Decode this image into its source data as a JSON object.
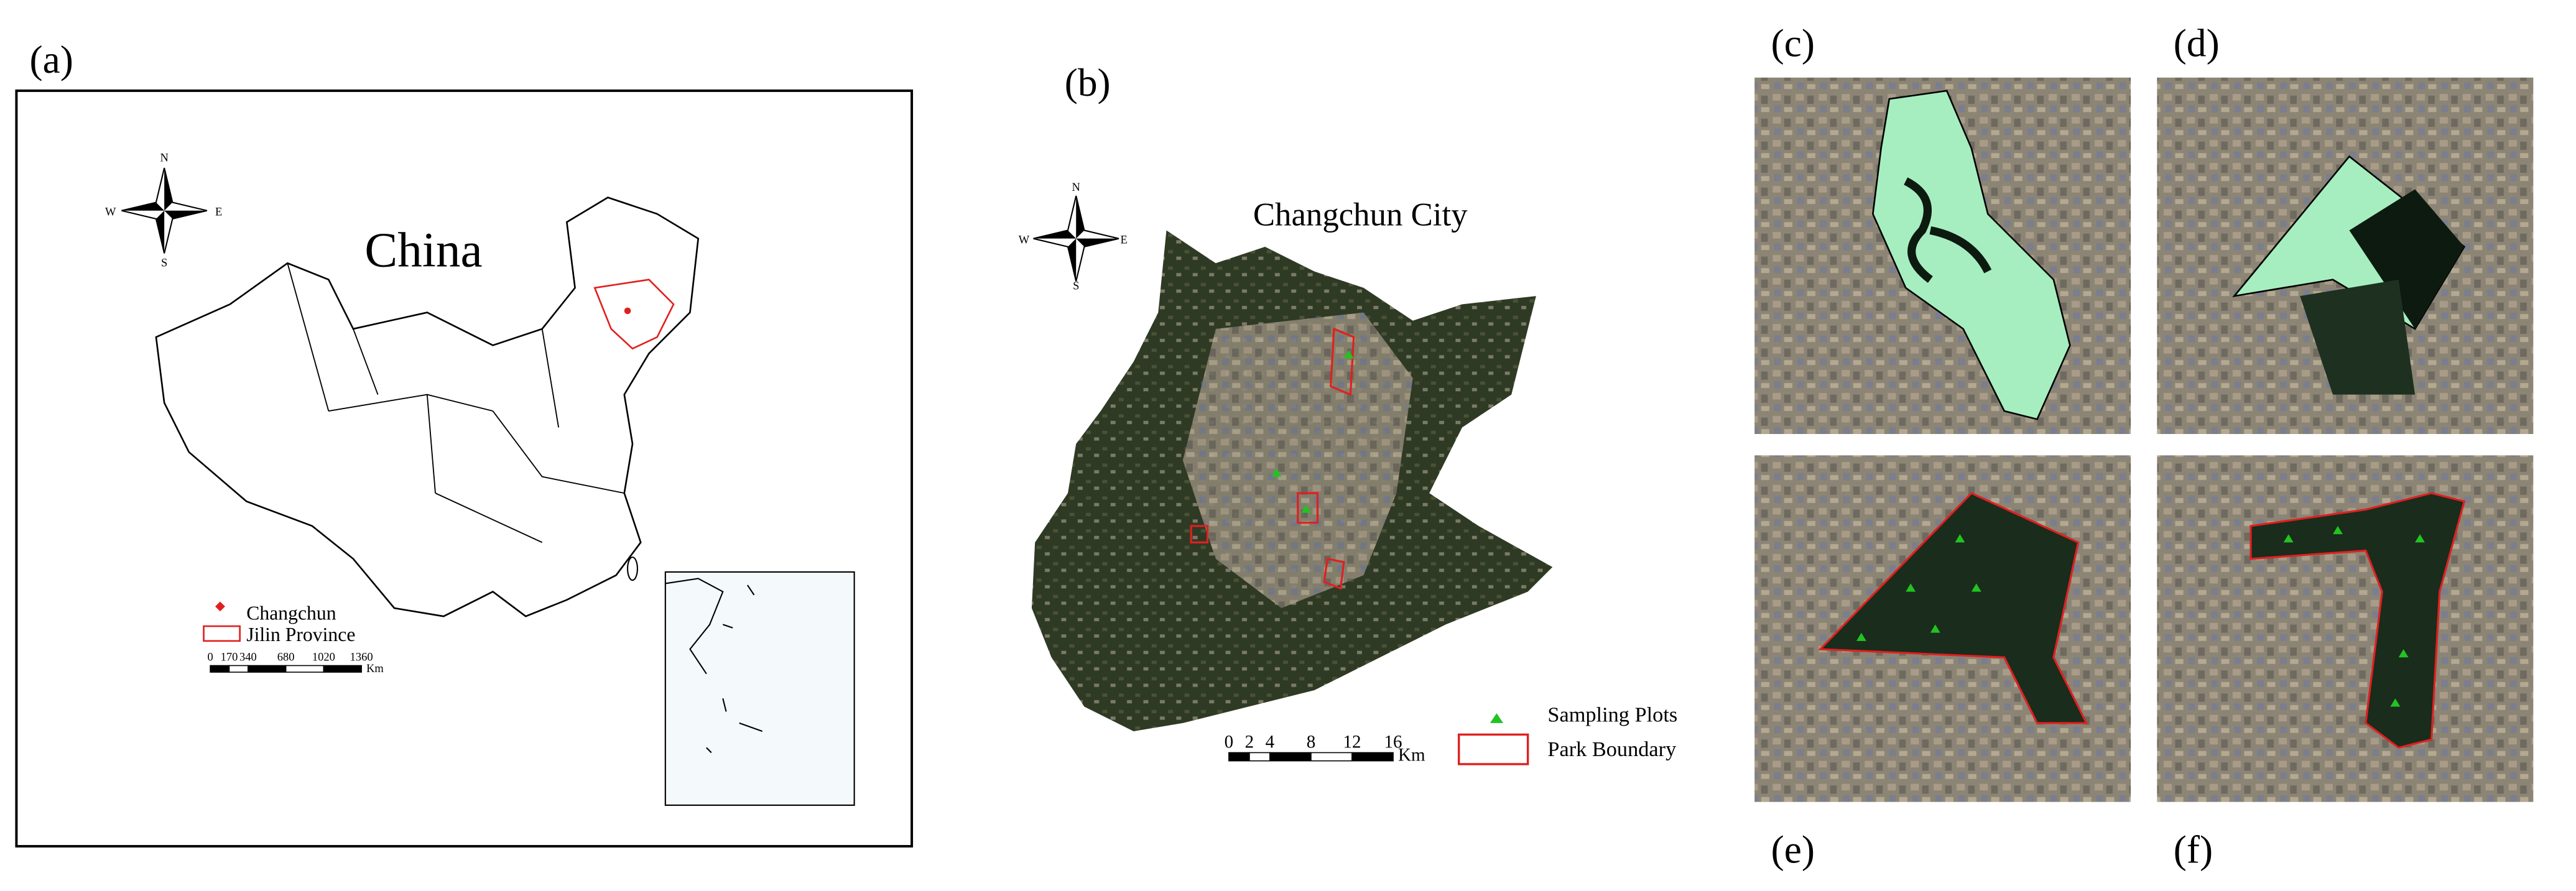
{
  "panels": {
    "a": "(a)",
    "b": "(b)",
    "c": "(c)",
    "d": "(d)",
    "e": "(e)",
    "f": "(f)"
  },
  "panel_a": {
    "title": "China",
    "compass": {
      "n": "N",
      "e": "E",
      "s": "S",
      "w": "W"
    },
    "legend": [
      "Changchun",
      "Jilin Province"
    ],
    "scale_ticks": [
      0,
      170,
      340,
      680,
      1020,
      1360
    ],
    "scale_unit": "Km"
  },
  "panel_b": {
    "title": "Changchun City",
    "compass": {
      "n": "N",
      "e": "E",
      "s": "S",
      "w": "W"
    },
    "legend": [
      "Sampling Plots",
      "Park Boundary"
    ],
    "scale_ticks": [
      0,
      2,
      4,
      8,
      12,
      16
    ],
    "scale_unit": "Km"
  }
}
